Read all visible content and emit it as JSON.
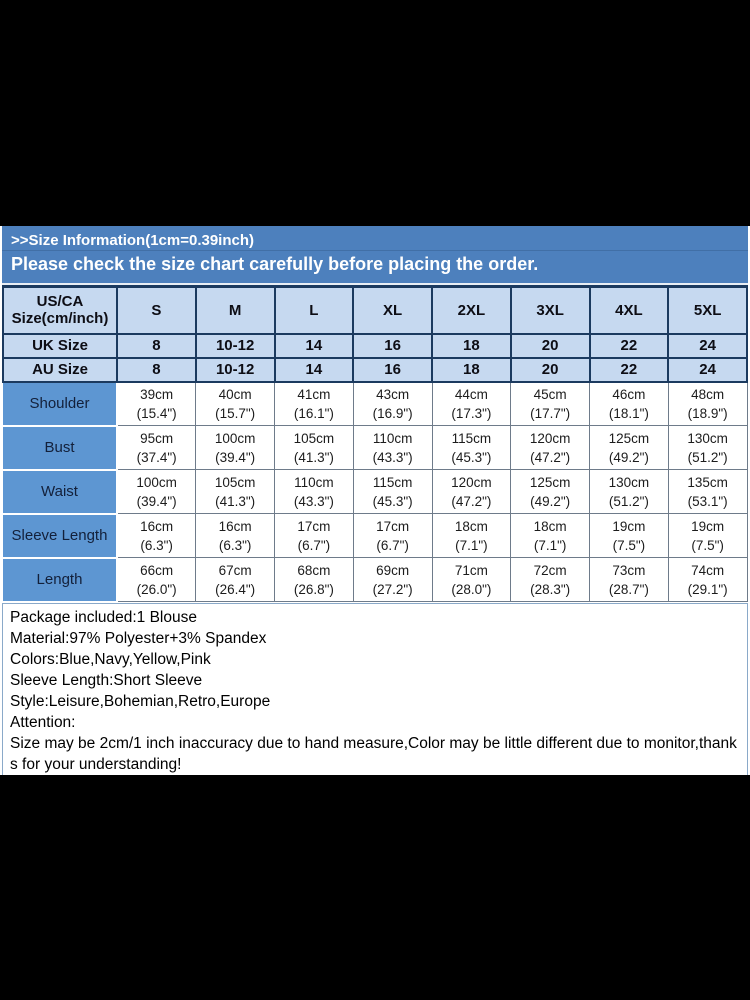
{
  "banner": {
    "title": ">>Size Information(1cm=0.39inch)",
    "subtitle": "Please check the size chart carefully before placing the order."
  },
  "size_chart": {
    "header": {
      "label": "US/CA\nSize(cm/inch)",
      "columns": [
        "S",
        "M",
        "L",
        "XL",
        "2XL",
        "3XL",
        "4XL",
        "5XL"
      ]
    },
    "uk_size": {
      "label": "UK Size",
      "values": [
        "8",
        "10-12",
        "14",
        "16",
        "18",
        "20",
        "22",
        "24"
      ]
    },
    "au_size": {
      "label": "AU Size",
      "values": [
        "8",
        "10-12",
        "14",
        "16",
        "18",
        "20",
        "22",
        "24"
      ]
    },
    "rows": [
      {
        "label": "Shoulder",
        "values": [
          "39cm\n(15.4\")",
          "40cm\n(15.7\")",
          "41cm\n(16.1\")",
          "43cm\n(16.9\")",
          "44cm\n(17.3\")",
          "45cm\n(17.7\")",
          "46cm\n(18.1\")",
          "48cm\n(18.9\")"
        ]
      },
      {
        "label": "Bust",
        "values": [
          "95cm\n(37.4\")",
          "100cm\n(39.4\")",
          "105cm\n(41.3\")",
          "110cm\n(43.3\")",
          "115cm\n(45.3\")",
          "120cm\n(47.2\")",
          "125cm\n(49.2\")",
          "130cm\n(51.2\")"
        ]
      },
      {
        "label": "Waist",
        "values": [
          "100cm\n(39.4\")",
          "105cm\n(41.3\")",
          "110cm\n(43.3\")",
          "115cm\n(45.3\")",
          "120cm\n(47.2\")",
          "125cm\n(49.2\")",
          "130cm\n(51.2\")",
          "135cm\n(53.1\")"
        ]
      },
      {
        "label": "Sleeve Length",
        "values": [
          "16cm\n(6.3\")",
          "16cm\n(6.3\")",
          "17cm\n(6.7\")",
          "17cm\n(6.7\")",
          "18cm\n(7.1\")",
          "18cm\n(7.1\")",
          "19cm\n(7.5\")",
          "19cm\n(7.5\")"
        ]
      },
      {
        "label": "Length",
        "values": [
          "66cm\n(26.0\")",
          "67cm\n(26.4\")",
          "68cm\n(26.8\")",
          "69cm\n(27.2\")",
          "71cm\n(28.0\")",
          "72cm\n(28.3\")",
          "73cm\n(28.7\")",
          "74cm\n(29.1\")"
        ]
      }
    ]
  },
  "details": {
    "lines": [
      "Package included:1 Blouse",
      "Material:97% Polyester+3% Spandex",
      "Colors:Blue,Navy,Yellow,Pink",
      "Sleeve Length:Short Sleeve",
      "Style:Leisure,Bohemian,Retro,Europe",
      "Attention:",
      "Size may be 2cm/1 inch inaccuracy due to hand measure,Color may be little different due to monitor,thanks for your understanding!"
    ]
  },
  "colors": {
    "banner_blue": "#4d80bd",
    "header_cell_blue": "#c6d9f0",
    "label_cell_blue": "#5d96d2",
    "border_navy": "#1b3a5f",
    "letterbox_black": "#000000"
  }
}
